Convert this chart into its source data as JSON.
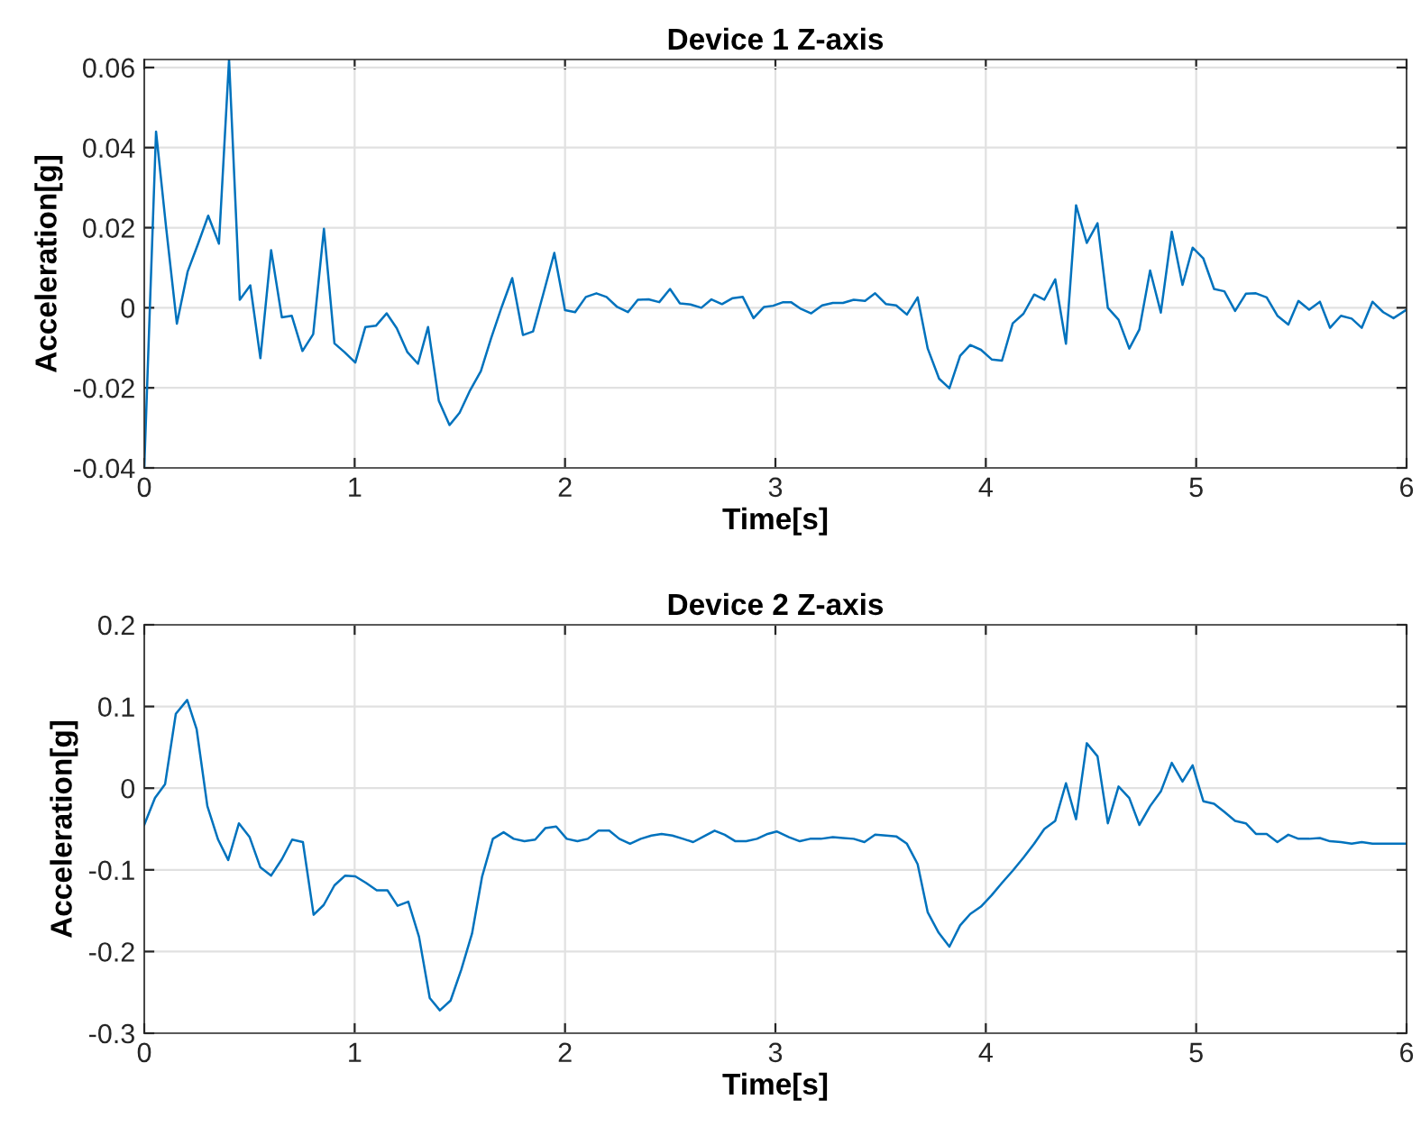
{
  "chart_data": [
    {
      "type": "line",
      "title": "Device 1 Z-axis",
      "xlabel": "Time[s]",
      "ylabel": "Acceleration[g]",
      "xlim": [
        0,
        6
      ],
      "xticks": [
        0,
        1,
        2,
        3,
        4,
        5,
        6
      ],
      "ylim": [
        -0.04,
        0.062
      ],
      "yticks": [
        -0.04,
        -0.02,
        0,
        0.02,
        0.04,
        0.06
      ],
      "grid": true,
      "series": [
        {
          "color": "#0072bd",
          "x": [
            0,
            0.056,
            0.104,
            0.155,
            0.206,
            0.256,
            0.304,
            0.355,
            0.403,
            0.454,
            0.504,
            0.552,
            0.603,
            0.654,
            0.701,
            0.752,
            0.803,
            0.854,
            0.904,
            0.952,
            1.003,
            1.051,
            1.101,
            1.152,
            1.2,
            1.251,
            1.301,
            1.349,
            1.4,
            1.451,
            1.499,
            1.549,
            1.6,
            1.648,
            1.699,
            1.749,
            1.8,
            1.848,
            1.899,
            1.949,
            2.0,
            2.048,
            2.099,
            2.149,
            2.197,
            2.248,
            2.299,
            2.346,
            2.397,
            2.448,
            2.499,
            2.546,
            2.597,
            2.648,
            2.696,
            2.746,
            2.797,
            2.845,
            2.896,
            2.946,
            2.989,
            3.037,
            3.074,
            3.122,
            3.17,
            3.222,
            3.273,
            3.321,
            3.372,
            3.426,
            3.474,
            3.526,
            3.574,
            3.625,
            3.676,
            3.724,
            3.778,
            3.827,
            3.878,
            3.926,
            3.977,
            4.028,
            4.077,
            4.128,
            4.179,
            4.23,
            4.278,
            4.33,
            4.381,
            4.429,
            4.48,
            4.531,
            4.58,
            4.631,
            4.682,
            4.73,
            4.781,
            4.832,
            4.884,
            4.935,
            4.983,
            5.034,
            5.085,
            5.134,
            5.185,
            5.236,
            5.284,
            5.335,
            5.386,
            5.438,
            5.486,
            5.537,
            5.588,
            5.636,
            5.688,
            5.739,
            5.787,
            5.838,
            5.889,
            5.938,
            6.0
          ],
          "values": [
            -0.04,
            0.044,
            0.02,
            -0.004,
            0.009,
            0.016,
            0.023,
            0.016,
            0.062,
            0.002,
            0.0056,
            -0.0126,
            0.0144,
            -0.0024,
            -0.002,
            -0.0108,
            -0.0066,
            0.0197,
            -0.0089,
            -0.0111,
            -0.0137,
            -0.0048,
            -0.0045,
            -0.0014,
            -0.0051,
            -0.0111,
            -0.014,
            -0.0048,
            -0.0232,
            -0.0293,
            -0.0262,
            -0.0206,
            -0.0158,
            -0.0077,
            0.0002,
            0.0074,
            -0.0068,
            -0.0059,
            0.0039,
            0.0137,
            -0.0006,
            -0.0011,
            0.0027,
            0.0036,
            0.0027,
            0.0002,
            -0.0011,
            0.002,
            0.0021,
            0.0014,
            0.0047,
            0.0011,
            0.0008,
            0,
            0.0021,
            0.0009,
            0.0024,
            0.0027,
            -0.0026,
            0.0002,
            0.0005,
            0.0014,
            0.0014,
            -0.0003,
            -0.0014,
            0.0006,
            0.0012,
            0.0012,
            0.002,
            0.0017,
            0.0036,
            0.0009,
            0.0006,
            -0.0017,
            0.0026,
            -0.0102,
            -0.0177,
            -0.0201,
            -0.012,
            -0.0093,
            -0.0105,
            -0.0129,
            -0.0132,
            -0.0039,
            -0.0015,
            0.0033,
            0.002,
            0.0071,
            -0.009,
            0.0256,
            0.0162,
            0.0211,
            0,
            -0.003,
            -0.0102,
            -0.0054,
            0.0093,
            -0.0012,
            0.019,
            0.0057,
            0.015,
            0.0123,
            0.0047,
            0.0041,
            -0.0008,
            0.0035,
            0.0036,
            0.0026,
            -0.002,
            -0.0042,
            0.0017,
            -0.0005,
            0.0015,
            -0.005,
            -0.002,
            -0.0027,
            -0.005,
            0.0015,
            -0.0011,
            -0.0026,
            -0.0005
          ]
        }
      ]
    },
    {
      "type": "line",
      "title": "Device 2 Z-axis",
      "xlabel": "Time[s]",
      "ylabel": "Acceleration[g]",
      "xlim": [
        0,
        6
      ],
      "xticks": [
        0,
        1,
        2,
        3,
        4,
        5,
        6
      ],
      "ylim": [
        -0.3,
        0.2
      ],
      "yticks": [
        -0.3,
        -0.2,
        -0.1,
        0,
        0.1,
        0.2
      ],
      "grid": true,
      "series": [
        {
          "color": "#0072bd",
          "x": [
            0,
            0.051,
            0.099,
            0.15,
            0.204,
            0.249,
            0.3,
            0.351,
            0.399,
            0.45,
            0.501,
            0.552,
            0.603,
            0.654,
            0.703,
            0.754,
            0.805,
            0.853,
            0.904,
            0.955,
            1.003,
            1.054,
            1.105,
            1.156,
            1.204,
            1.255,
            1.306,
            1.357,
            1.405,
            1.456,
            1.507,
            1.558,
            1.606,
            1.657,
            1.708,
            1.756,
            1.807,
            1.858,
            1.906,
            1.958,
            2.008,
            2.059,
            2.108,
            2.159,
            2.21,
            2.258,
            2.309,
            2.36,
            2.411,
            2.459,
            2.51,
            2.561,
            2.609,
            2.66,
            2.711,
            2.759,
            2.81,
            2.861,
            2.912,
            2.963,
            3.006,
            3.065,
            3.116,
            3.165,
            3.216,
            3.273,
            3.321,
            3.372,
            3.423,
            3.474,
            3.526,
            3.574,
            3.625,
            3.676,
            3.724,
            3.776,
            3.827,
            3.878,
            3.926,
            3.977,
            4.028,
            4.077,
            4.128,
            4.179,
            4.23,
            4.278,
            4.33,
            4.381,
            4.429,
            4.48,
            4.531,
            4.58,
            4.631,
            4.682,
            4.73,
            4.781,
            4.832,
            4.884,
            4.935,
            4.983,
            5.034,
            5.085,
            5.134,
            5.185,
            5.236,
            5.284,
            5.335,
            5.386,
            5.438,
            5.486,
            5.537,
            5.588,
            5.636,
            5.688,
            5.739,
            5.787,
            5.838,
            5.889,
            5.938,
            6.0
          ],
          "values": [
            -0.045,
            -0.012,
            0.005,
            0.091,
            0.108,
            0.072,
            -0.022,
            -0.063,
            -0.088,
            -0.043,
            -0.06,
            -0.097,
            -0.107,
            -0.087,
            -0.063,
            -0.066,
            -0.155,
            -0.143,
            -0.119,
            -0.107,
            -0.108,
            -0.116,
            -0.125,
            -0.125,
            -0.144,
            -0.139,
            -0.182,
            -0.257,
            -0.272,
            -0.26,
            -0.222,
            -0.178,
            -0.108,
            -0.062,
            -0.054,
            -0.062,
            -0.065,
            -0.063,
            -0.049,
            -0.047,
            -0.062,
            -0.065,
            -0.062,
            -0.052,
            -0.052,
            -0.062,
            -0.068,
            -0.062,
            -0.058,
            -0.056,
            -0.058,
            -0.062,
            -0.066,
            -0.059,
            -0.052,
            -0.057,
            -0.065,
            -0.065,
            -0.062,
            -0.056,
            -0.053,
            -0.06,
            -0.065,
            -0.062,
            -0.062,
            -0.06,
            -0.061,
            -0.062,
            -0.066,
            -0.057,
            -0.058,
            -0.059,
            -0.068,
            -0.093,
            -0.152,
            -0.177,
            -0.194,
            -0.168,
            -0.154,
            -0.145,
            -0.131,
            -0.116,
            -0.101,
            -0.085,
            -0.068,
            -0.05,
            -0.04,
            0.006,
            -0.038,
            0.055,
            0.039,
            -0.043,
            0.002,
            -0.012,
            -0.045,
            -0.022,
            -0.004,
            0.031,
            0.008,
            0.028,
            -0.016,
            -0.019,
            -0.029,
            -0.04,
            -0.043,
            -0.056,
            -0.056,
            -0.066,
            -0.057,
            -0.062,
            -0.062,
            -0.061,
            -0.065,
            -0.066,
            -0.068,
            -0.066,
            -0.068,
            -0.068,
            -0.068,
            -0.068
          ]
        }
      ]
    }
  ]
}
